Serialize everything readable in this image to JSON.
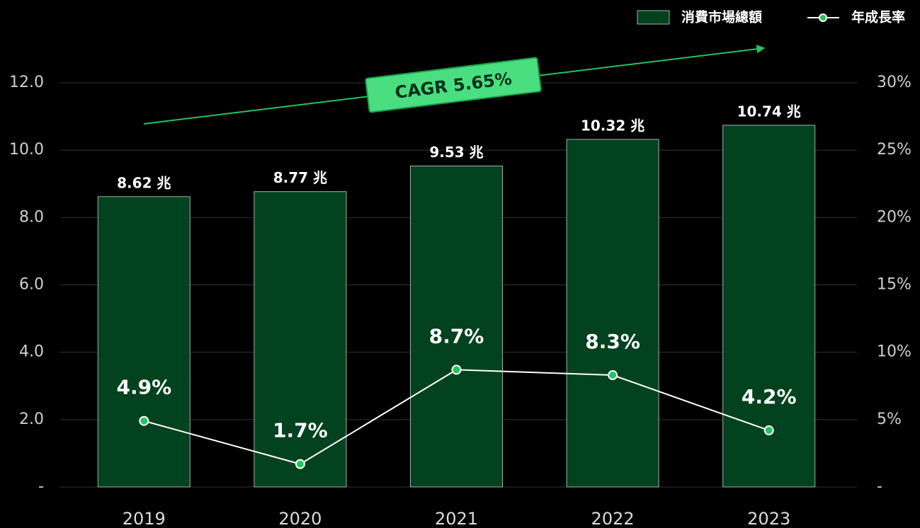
{
  "chart_data": {
    "type": "combo",
    "annotation": "CAGR 5.65%",
    "categories": [
      "2019",
      "2020",
      "2021",
      "2022",
      "2023"
    ],
    "series": [
      {
        "name": "消費市場總額",
        "type": "bar",
        "axis": "y",
        "color": "#03421f",
        "values": [
          8.62,
          8.77,
          9.53,
          10.32,
          10.74
        ],
        "value_labels": [
          "8.62 兆",
          "8.77 兆",
          "9.53 兆",
          "10.32 兆",
          "10.74 兆"
        ]
      },
      {
        "name": "年成長率",
        "type": "line",
        "axis": "y2",
        "color": "#ffffff",
        "marker_color": "#22c55e",
        "values": [
          4.9,
          1.7,
          8.7,
          8.3,
          4.2
        ],
        "value_labels": [
          "4.9%",
          "1.7%",
          "8.7%",
          "8.3%",
          "4.2%"
        ]
      }
    ],
    "ylim": [
      0,
      12
    ],
    "yticks": [
      {
        "value": 0,
        "label": "-"
      },
      {
        "value": 2,
        "label": "2.0"
      },
      {
        "value": 4,
        "label": "4.0"
      },
      {
        "value": 6,
        "label": "6.0"
      },
      {
        "value": 8,
        "label": "8.0"
      },
      {
        "value": 10,
        "label": "10.0"
      },
      {
        "value": 12,
        "label": "12.0"
      }
    ],
    "y2lim": [
      0,
      30
    ],
    "y2ticks": [
      {
        "value": 0,
        "label": "-"
      },
      {
        "value": 5,
        "label": "5%"
      },
      {
        "value": 10,
        "label": "10%"
      },
      {
        "value": 15,
        "label": "15%"
      },
      {
        "value": 20,
        "label": "20%"
      },
      {
        "value": 25,
        "label": "25%"
      },
      {
        "value": 30,
        "label": "30%"
      }
    ],
    "grid": true,
    "legend": "top-right"
  }
}
